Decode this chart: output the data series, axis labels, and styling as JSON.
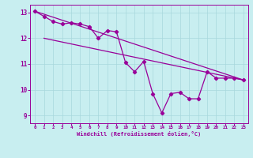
{
  "bg_color": "#c8eef0",
  "grid_color": "#a8d8dc",
  "line_color": "#990099",
  "marker": "D",
  "markersize": 2.2,
  "linewidth": 0.9,
  "xlabel": "Windchill (Refroidissement éolien,°C)",
  "xlim": [
    -0.5,
    23.5
  ],
  "ylim": [
    8.7,
    13.3
  ],
  "yticks": [
    9,
    10,
    11,
    12,
    13
  ],
  "xticks": [
    0,
    1,
    2,
    3,
    4,
    5,
    6,
    7,
    8,
    9,
    10,
    11,
    12,
    13,
    14,
    15,
    16,
    17,
    18,
    19,
    20,
    21,
    22,
    23
  ],
  "xticklabels": [
    "0",
    "1",
    "2",
    "3",
    "4",
    "5",
    "6",
    "7",
    "8",
    "9",
    "10",
    "11",
    "12",
    "13",
    "14",
    "15",
    "16",
    "17",
    "18",
    "19",
    "20",
    "21",
    "22",
    "23"
  ],
  "line1_x": [
    0,
    23
  ],
  "line1_y": [
    13.05,
    10.38
  ],
  "line2_x": [
    1,
    23
  ],
  "line2_y": [
    12.0,
    10.38
  ],
  "line3_x": [
    0,
    1,
    2,
    3,
    4,
    5,
    6,
    7,
    8,
    9,
    10,
    11,
    12,
    13,
    14,
    15,
    16,
    17,
    18,
    19,
    20,
    21,
    22,
    23
  ],
  "line3_y": [
    13.05,
    12.85,
    12.65,
    12.55,
    12.6,
    12.55,
    12.45,
    12.0,
    12.3,
    12.25,
    11.05,
    10.7,
    11.1,
    9.85,
    9.1,
    9.85,
    9.9,
    9.65,
    9.65,
    10.7,
    10.45,
    10.45,
    10.45,
    10.38
  ]
}
